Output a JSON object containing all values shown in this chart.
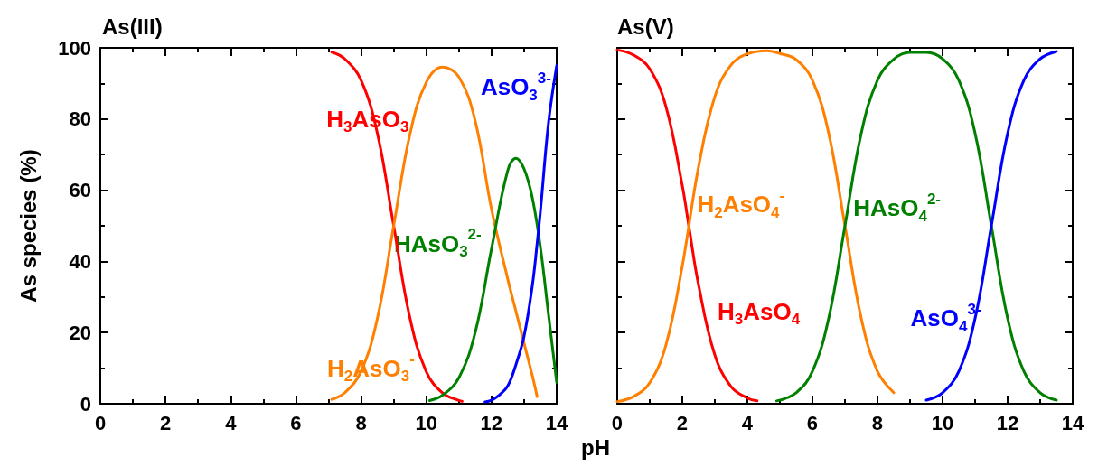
{
  "chart_data": [
    {
      "type": "line",
      "title": "As(III)",
      "ylabel": "As species (%)",
      "xlim": [
        0,
        14
      ],
      "xticks": [
        0,
        2,
        4,
        6,
        8,
        10,
        12,
        14
      ],
      "ylim": [
        0,
        100
      ],
      "yticks": [
        0,
        20,
        40,
        60,
        80,
        100
      ],
      "line_style": "solid",
      "series": [
        {
          "name": "H$_{3}$AsO$_{3}$",
          "color": "#ff0000",
          "x": [
            7.1,
            7.5,
            8,
            8.5,
            9,
            9.5,
            10,
            10.5,
            11,
            11.1
          ],
          "values": [
            98.8,
            96.9,
            90.9,
            76,
            50,
            24,
            9,
            3,
            0.9,
            0.7
          ]
        },
        {
          "name": "H$_{2}$AsO$_{3}$$^{-}$",
          "color": "#ff8000",
          "x": [
            7.1,
            7.5,
            8,
            8.5,
            9,
            9.5,
            10,
            10.5,
            11,
            11.5,
            12,
            12.5,
            12.75,
            13,
            13.25,
            13.4
          ],
          "values": [
            1.2,
            3.1,
            9.1,
            24,
            50,
            75.8,
            90.3,
            94.6,
            91.8,
            79.5,
            54.7,
            35,
            26,
            17,
            8,
            2
          ]
        },
        {
          "name": "HAsO$_{3}$$^{2-}$",
          "color": "#008000",
          "x": [
            10.1,
            10.5,
            11,
            11.5,
            12,
            12.5,
            12.75,
            13,
            13.25,
            13.5,
            13.75,
            14
          ],
          "values": [
            0.9,
            2.4,
            7.3,
            20,
            43.5,
            65.6,
            69,
            66,
            58,
            44,
            25,
            6
          ]
        },
        {
          "name": "AsO$_{3}$$^{3-}$",
          "color": "#0000ff",
          "x": [
            11.8,
            12,
            12.25,
            12.5,
            12.75,
            13,
            13.25,
            13.4,
            13.5,
            13.75,
            14
          ],
          "values": [
            0.5,
            1,
            2.5,
            5,
            11,
            19,
            33,
            45,
            54,
            79,
            95
          ]
        }
      ]
    },
    {
      "type": "line",
      "title": "As(V)",
      "xlabel": "pH",
      "xlim": [
        0,
        14
      ],
      "xticks": [
        0,
        2,
        4,
        6,
        8,
        10,
        12,
        14
      ],
      "ylim": [
        0,
        100
      ],
      "yticks": [
        0,
        20,
        40,
        60,
        80,
        100
      ],
      "tick_labels": "x",
      "line_style": "solid",
      "series": [
        {
          "name": "H$_{3}$AsO$_{4}$",
          "color": "#ff0000",
          "x": [
            0,
            0.5,
            1,
            1.5,
            2,
            2.2,
            2.5,
            3,
            3.5,
            4,
            4.3
          ],
          "values": [
            99.4,
            98,
            94.1,
            83.4,
            61.3,
            50,
            33.4,
            13.7,
            4.8,
            1.6,
            0.8
          ]
        },
        {
          "name": "H$_{2}$AsO$_{4}$$^{-}$",
          "color": "#ff8000",
          "x": [
            0,
            0.5,
            1,
            1.5,
            2,
            2.5,
            3,
            3.5,
            4,
            4.6,
            5,
            5.5,
            6,
            6.5,
            7,
            7.5,
            8,
            8.5
          ],
          "values": [
            0.6,
            2,
            5.9,
            16.6,
            38.7,
            66.6,
            86.3,
            95.2,
            98.3,
            99.2,
            98.4,
            96.7,
            90.9,
            76,
            50,
            24,
            9.1,
            3.1
          ]
        },
        {
          "name": "HAsO$_{4}$$^{2-}$",
          "color": "#008000",
          "x": [
            4.9,
            5.5,
            6,
            6.5,
            7,
            7.5,
            8,
            8.5,
            9,
            9.5,
            10,
            10.5,
            11,
            11.5,
            12,
            12.5,
            13,
            13.5
          ],
          "values": [
            0.8,
            3.1,
            9.1,
            24,
            50,
            76,
            90.9,
            96.8,
            98.7,
            98.7,
            96.9,
            90.9,
            76,
            50,
            24,
            9.1,
            3.1,
            1
          ]
        },
        {
          "name": "AsO$_{4}$$^{3-}$",
          "color": "#0000ff",
          "x": [
            9.5,
            10,
            10.5,
            11,
            11.5,
            12,
            12.5,
            13,
            13.5
          ],
          "values": [
            1,
            3.1,
            9.1,
            24,
            50,
            76,
            90.9,
            96.9,
            99
          ]
        }
      ]
    }
  ]
}
